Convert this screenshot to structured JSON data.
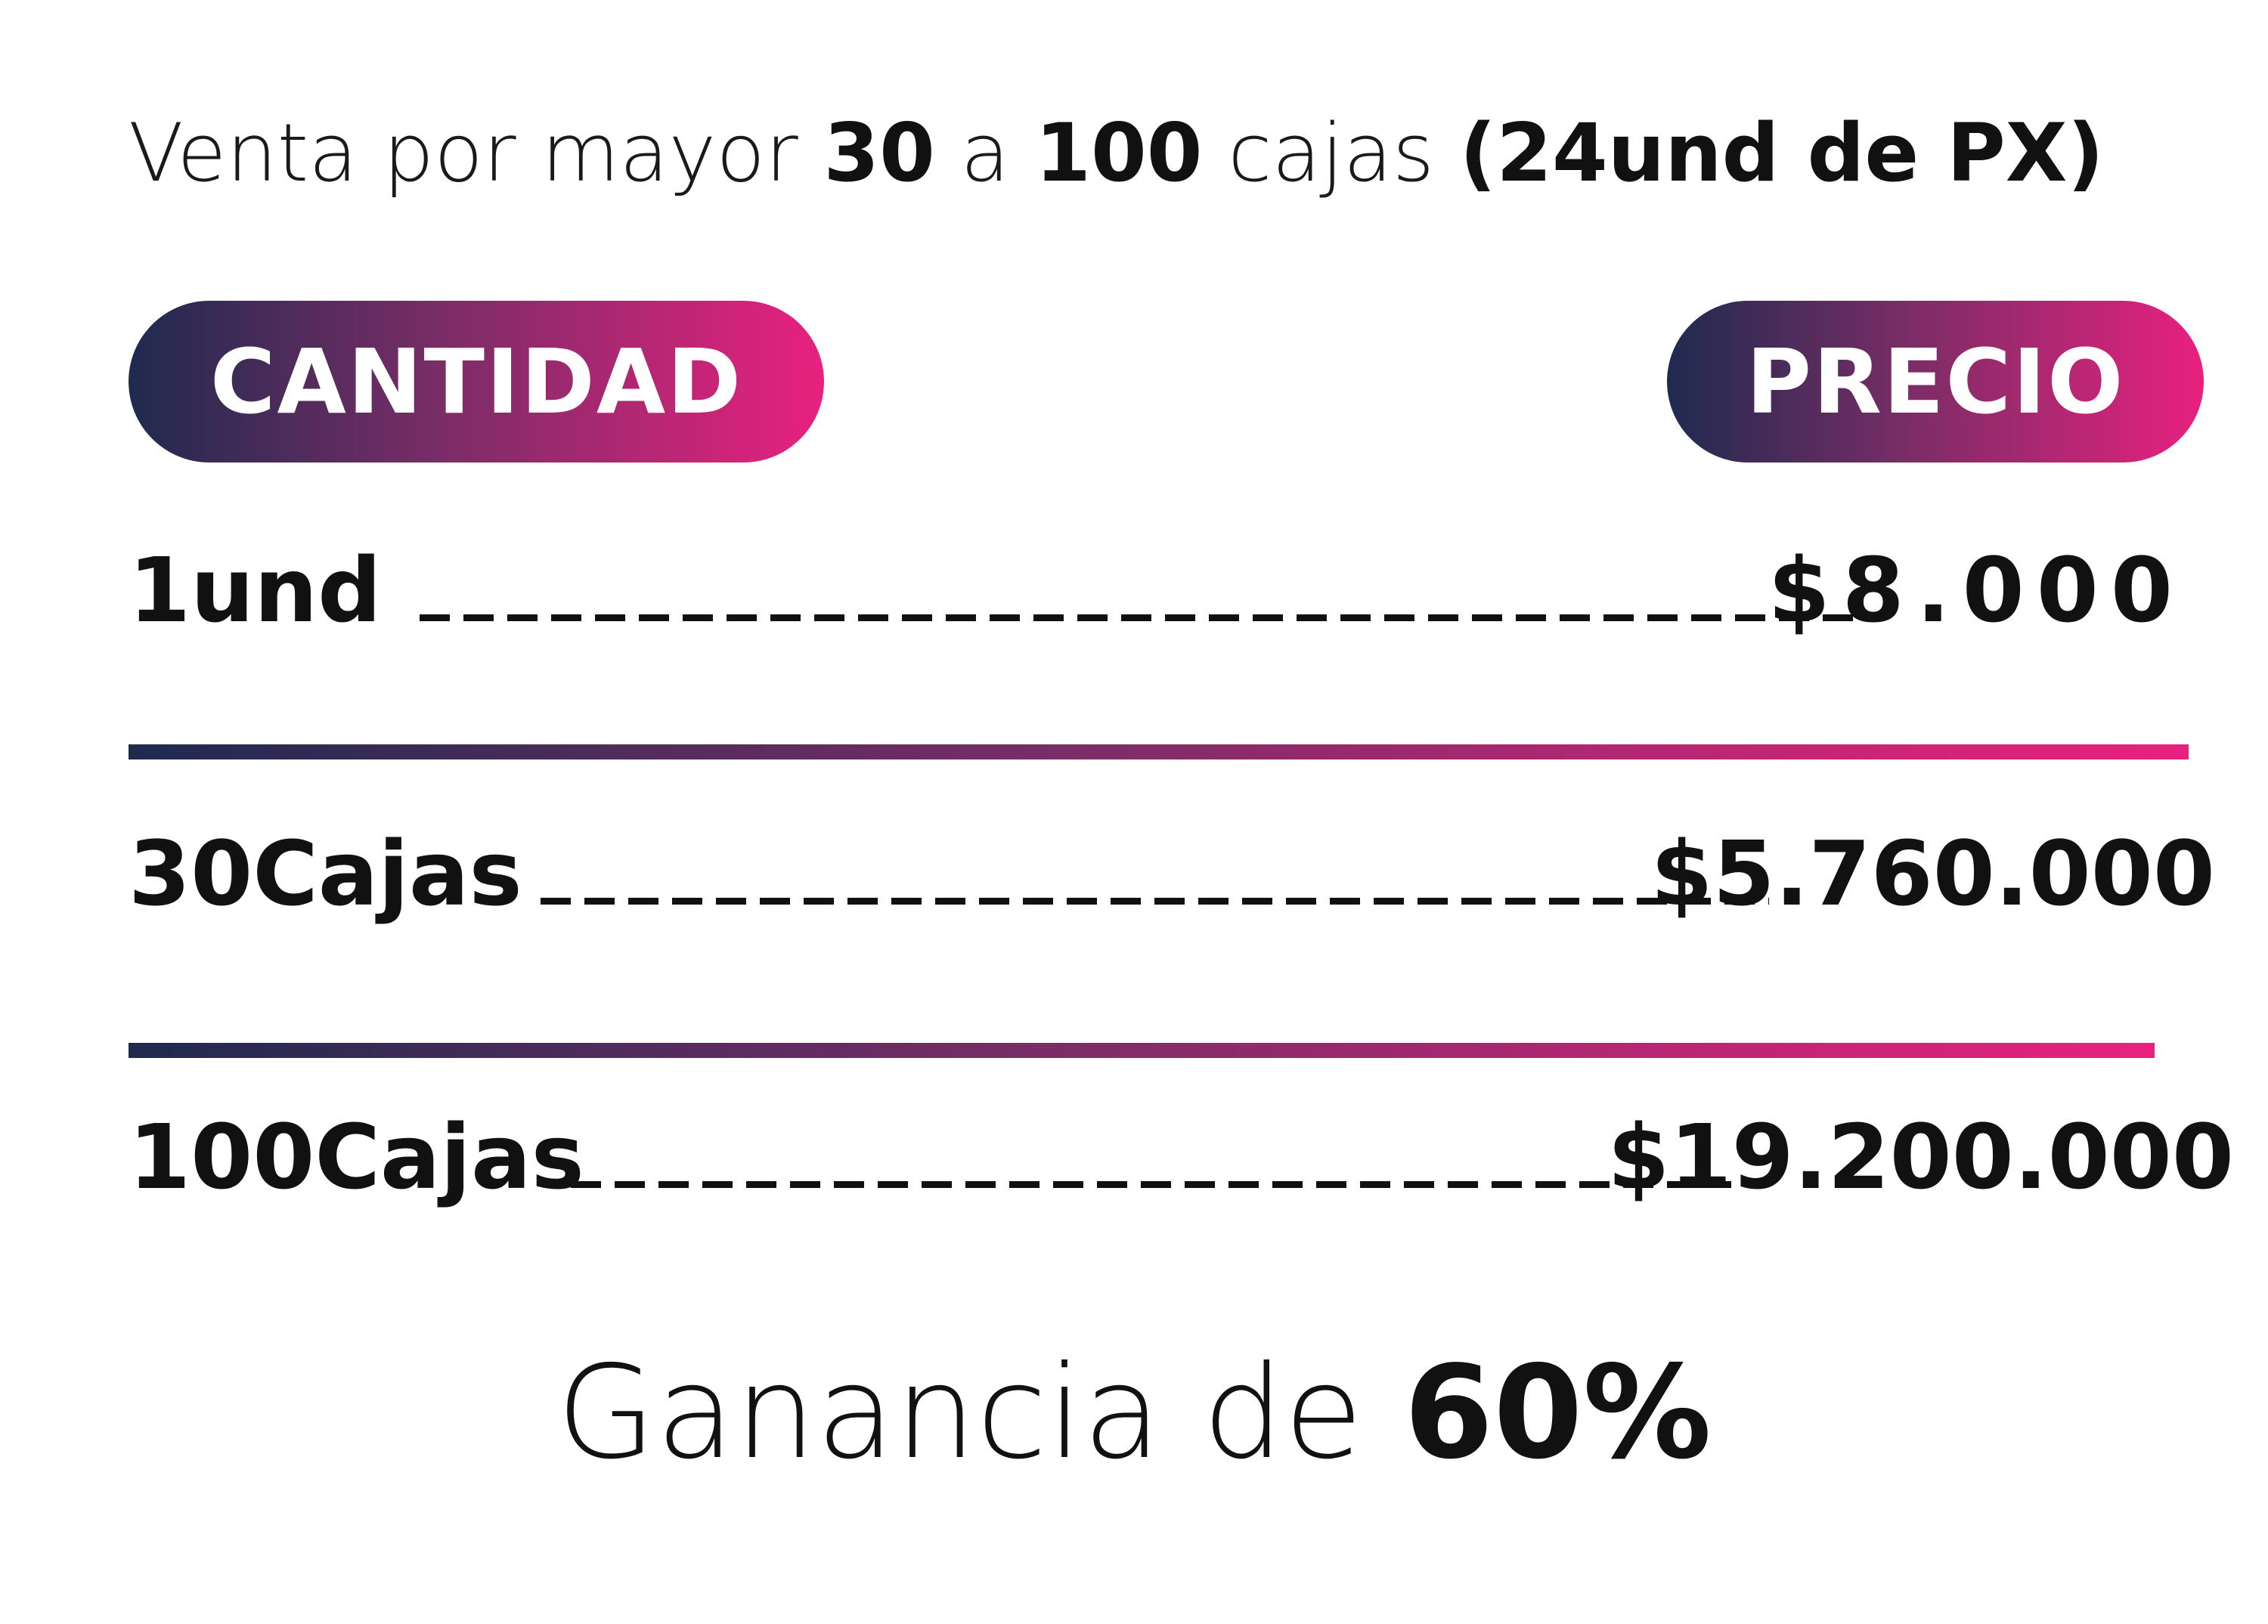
{
  "headline": {
    "prefix": "Venta por mayor ",
    "min": "30",
    "connector": " a ",
    "max": "100",
    "unit": " cajas ",
    "note": "(24und de PX)"
  },
  "table": {
    "quantity_header": "CANTIDAD",
    "price_header": "PRECIO",
    "rows": [
      {
        "quantity": "1und",
        "price": "$8.000"
      },
      {
        "quantity": "30Cajas",
        "price": "$5.760.000"
      },
      {
        "quantity": "100Cajas",
        "price": "$19.200.000"
      }
    ]
  },
  "footer": {
    "prefix": "Ganancia de ",
    "percent": "60%"
  },
  "colors": {
    "gradient_start": "#1f2a4f",
    "gradient_mid": "#7a2d66",
    "gradient_end": "#e8217f",
    "text": "#111111",
    "background": "#ffffff"
  }
}
